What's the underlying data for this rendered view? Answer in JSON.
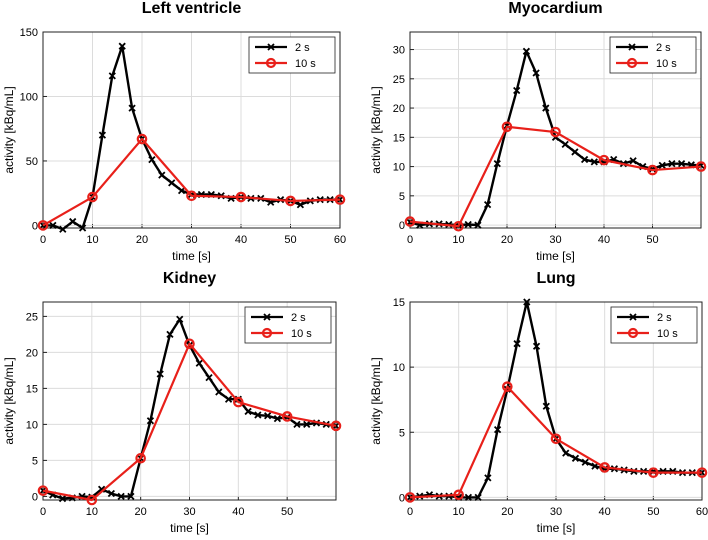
{
  "chart_data": [
    {
      "type": "line",
      "title": "Left ventricle",
      "xlabel": "time [s]",
      "ylabel": "activity [kBq/mL]",
      "xlim": [
        0,
        60
      ],
      "ylim": [
        -2,
        150
      ],
      "xticks": [
        0,
        10,
        20,
        30,
        40,
        50,
        60
      ],
      "yticks": [
        0,
        50,
        100,
        150
      ],
      "grid": true,
      "legend_position": "top-right",
      "series": [
        {
          "name": "2 s",
          "color": "#000000",
          "marker": "x",
          "x": [
            0,
            2,
            4,
            6,
            8,
            10,
            12,
            14,
            16,
            18,
            20,
            22,
            24,
            26,
            28,
            30,
            32,
            34,
            36,
            38,
            40,
            42,
            44,
            46,
            48,
            50,
            52,
            54,
            56,
            58,
            60
          ],
          "y": [
            0,
            0,
            -3,
            3,
            -2,
            22,
            70,
            116,
            139,
            91,
            67,
            51,
            39,
            33,
            27,
            24,
            24,
            24,
            23,
            21,
            22,
            21,
            21,
            18,
            20,
            19,
            16,
            19,
            20,
            20,
            20
          ]
        },
        {
          "name": "10 s",
          "color": "#e8201a",
          "marker": "o",
          "x": [
            0,
            10,
            20,
            30,
            40,
            50,
            60
          ],
          "y": [
            0,
            22,
            67,
            23,
            22,
            19,
            20
          ]
        }
      ]
    },
    {
      "type": "line",
      "title": "Myocardium",
      "xlabel": "time [s]",
      "ylabel": "activity [kBq/mL]",
      "xlim": [
        0,
        60
      ],
      "ylim": [
        -0.5,
        33
      ],
      "xticks": [
        0,
        10,
        20,
        30,
        40,
        50
      ],
      "yticks": [
        0,
        5,
        10,
        15,
        20,
        25,
        30
      ],
      "grid": true,
      "legend_position": "top-right",
      "series": [
        {
          "name": "2 s",
          "color": "#000000",
          "marker": "x",
          "x": [
            0,
            2,
            4,
            6,
            8,
            10,
            12,
            14,
            16,
            18,
            20,
            22,
            24,
            26,
            28,
            30,
            32,
            34,
            36,
            38,
            40,
            42,
            44,
            46,
            48,
            50,
            52,
            54,
            56,
            58,
            60
          ],
          "y": [
            0.5,
            0,
            0.2,
            0.2,
            0.1,
            0,
            0.1,
            0,
            3.5,
            10.5,
            17,
            23,
            29.7,
            26,
            20,
            15,
            13.8,
            12.5,
            11.2,
            10.8,
            10.8,
            11.2,
            10.5,
            11,
            10,
            9.6,
            10.2,
            10.5,
            10.5,
            10.3,
            10.2
          ]
        },
        {
          "name": "10 s",
          "color": "#e8201a",
          "marker": "o",
          "x": [
            0,
            10,
            20,
            30,
            40,
            50,
            60
          ],
          "y": [
            0.6,
            -0.2,
            16.8,
            15.9,
            11.1,
            9.4,
            10
          ]
        }
      ]
    },
    {
      "type": "line",
      "title": "Kidney",
      "xlabel": "time [s]",
      "ylabel": "activity [kBq/mL]",
      "xlim": [
        0,
        60
      ],
      "ylim": [
        -0.5,
        27
      ],
      "xticks": [
        0,
        10,
        20,
        30,
        40,
        50
      ],
      "yticks": [
        0,
        5,
        10,
        15,
        20,
        25
      ],
      "grid": true,
      "legend_position": "top-right",
      "series": [
        {
          "name": "2 s",
          "color": "#000000",
          "marker": "x",
          "x": [
            0,
            2,
            4,
            6,
            8,
            10,
            12,
            14,
            16,
            18,
            20,
            22,
            24,
            26,
            28,
            30,
            32,
            34,
            36,
            38,
            40,
            42,
            44,
            46,
            48,
            50,
            52,
            54,
            56,
            58,
            60
          ],
          "y": [
            0.8,
            0.2,
            -0.3,
            -0.2,
            0,
            -0.1,
            1,
            0.4,
            0,
            0,
            5.3,
            10.5,
            17,
            22.5,
            24.6,
            21,
            18.5,
            16.5,
            14.5,
            13.5,
            13.5,
            11.8,
            11.3,
            11.2,
            10.8,
            11,
            10,
            10,
            10.2,
            10,
            9.8
          ]
        },
        {
          "name": "10 s",
          "color": "#e8201a",
          "marker": "o",
          "x": [
            0,
            10,
            20,
            30,
            40,
            50,
            60
          ],
          "y": [
            0.8,
            -0.5,
            5.3,
            21.2,
            13.1,
            11.1,
            9.8
          ]
        }
      ]
    },
    {
      "type": "line",
      "title": "Lung",
      "xlabel": "time [s]",
      "ylabel": "activity [kBq/mL]",
      "xlim": [
        0,
        60
      ],
      "ylim": [
        -0.2,
        15
      ],
      "xticks": [
        0,
        10,
        20,
        30,
        40,
        50,
        60
      ],
      "yticks": [
        0,
        5,
        10,
        15
      ],
      "grid": true,
      "legend_position": "top-right",
      "series": [
        {
          "name": "2 s",
          "color": "#000000",
          "marker": "x",
          "x": [
            0,
            2,
            4,
            6,
            8,
            10,
            12,
            14,
            16,
            18,
            20,
            22,
            24,
            26,
            28,
            30,
            32,
            34,
            36,
            38,
            40,
            42,
            44,
            46,
            48,
            50,
            52,
            54,
            56,
            58,
            60
          ],
          "y": [
            0,
            0.1,
            0.2,
            0.1,
            0.1,
            0,
            0,
            0,
            1.5,
            5.2,
            8.3,
            11.8,
            15,
            11.6,
            7,
            4.5,
            3.4,
            3,
            2.7,
            2.4,
            2.2,
            2.2,
            2.1,
            2,
            2,
            2,
            2,
            2,
            1.9,
            1.9,
            1.9
          ]
        },
        {
          "name": "10 s",
          "color": "#e8201a",
          "marker": "o",
          "x": [
            0,
            10,
            20,
            30,
            40,
            50,
            60
          ],
          "y": [
            0,
            0.2,
            8.5,
            4.5,
            2.3,
            1.9,
            1.9
          ]
        }
      ]
    }
  ]
}
